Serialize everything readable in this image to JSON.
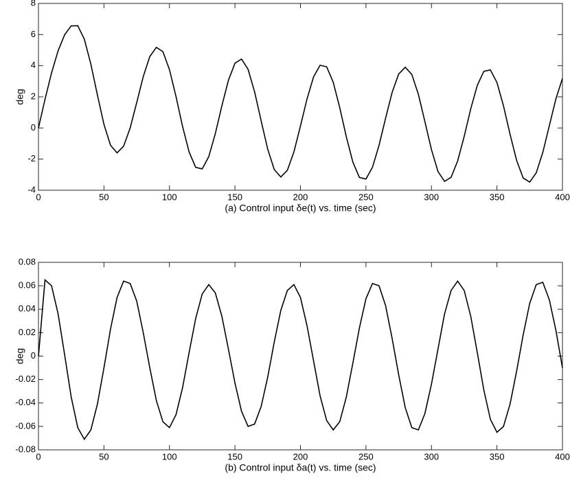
{
  "chart_data": [
    {
      "type": "line",
      "xlabel": "(a) Control input δe(t) vs. time (sec)",
      "ylabel": "deg",
      "xlim": [
        0,
        400
      ],
      "ylim": [
        -4,
        8
      ],
      "xticks": [
        0,
        50,
        100,
        150,
        200,
        250,
        300,
        350,
        400
      ],
      "yticks": [
        -4,
        -2,
        0,
        2,
        4,
        6,
        8
      ],
      "color": "#000000",
      "x": [
        0,
        5,
        10,
        15,
        20,
        25,
        30,
        35,
        40,
        45,
        50,
        55,
        60,
        65,
        70,
        75,
        80,
        85,
        90,
        95,
        100,
        105,
        110,
        115,
        120,
        125,
        130,
        135,
        140,
        145,
        150,
        155,
        160,
        165,
        170,
        175,
        180,
        185,
        190,
        195,
        200,
        205,
        210,
        215,
        220,
        225,
        230,
        235,
        240,
        245,
        250,
        255,
        260,
        265,
        270,
        275,
        280,
        285,
        290,
        295,
        300,
        305,
        310,
        315,
        320,
        325,
        330,
        335,
        340,
        345,
        350,
        355,
        360,
        365,
        370,
        375,
        380,
        385,
        390,
        395,
        400
      ],
      "values": [
        0,
        1.84,
        3.54,
        4.96,
        5.99,
        6.56,
        6.57,
        5.71,
        4.1,
        2.12,
        0.23,
        -1.11,
        -1.6,
        -1.17,
        0.0,
        1.63,
        3.3,
        4.59,
        5.18,
        4.9,
        3.75,
        2.02,
        0.1,
        -1.54,
        -2.53,
        -2.63,
        -1.84,
        -0.37,
        1.42,
        3.06,
        4.16,
        4.43,
        3.77,
        2.32,
        0.46,
        -1.36,
        -2.67,
        -3.15,
        -2.72,
        -1.54,
        0.12,
        1.86,
        3.28,
        4.03,
        3.93,
        2.94,
        1.31,
        -0.56,
        -2.19,
        -3.18,
        -3.28,
        -2.52,
        -1.11,
        0.63,
        2.29,
        3.47,
        3.9,
        3.44,
        2.17,
        0.41,
        -1.39,
        -2.8,
        -3.43,
        -3.17,
        -2.12,
        -0.54,
        1.23,
        2.74,
        3.64,
        3.73,
        2.92,
        1.42,
        -0.4,
        -2.08,
        -3.21,
        -3.48,
        -2.88,
        -1.57,
        0.15,
        1.87,
        3.18
      ]
    },
    {
      "type": "line",
      "xlabel": "(b) Control input δa(t) vs. time (sec)",
      "ylabel": "deg",
      "xlim": [
        0,
        400
      ],
      "ylim": [
        -0.08,
        0.08
      ],
      "xticks": [
        0,
        50,
        100,
        150,
        200,
        250,
        300,
        350,
        400
      ],
      "yticks": [
        -0.08,
        -0.06,
        -0.04,
        -0.02,
        0,
        0.02,
        0.04,
        0.06,
        0.08
      ],
      "color": "#000000",
      "x": [
        0,
        5,
        10,
        15,
        20,
        25,
        30,
        35,
        40,
        45,
        50,
        55,
        60,
        65,
        70,
        75,
        80,
        85,
        90,
        95,
        100,
        105,
        110,
        115,
        120,
        125,
        130,
        135,
        140,
        145,
        150,
        155,
        160,
        165,
        170,
        175,
        180,
        185,
        190,
        195,
        200,
        205,
        210,
        215,
        220,
        225,
        230,
        235,
        240,
        245,
        250,
        255,
        260,
        265,
        270,
        275,
        280,
        285,
        290,
        295,
        300,
        305,
        310,
        315,
        320,
        325,
        330,
        335,
        340,
        345,
        350,
        355,
        360,
        365,
        370,
        375,
        380,
        385,
        390,
        395,
        400
      ],
      "values": [
        0,
        0.065,
        0.06,
        0.036,
        0.001,
        -0.035,
        -0.061,
        -0.071,
        -0.063,
        -0.041,
        -0.01,
        0.023,
        0.05,
        0.064,
        0.062,
        0.047,
        0.02,
        -0.01,
        -0.038,
        -0.056,
        -0.061,
        -0.05,
        -0.027,
        0.003,
        0.032,
        0.053,
        0.061,
        0.054,
        0.034,
        0.006,
        -0.023,
        -0.047,
        -0.06,
        -0.058,
        -0.043,
        -0.018,
        0.012,
        0.039,
        0.056,
        0.061,
        0.05,
        0.026,
        -0.004,
        -0.034,
        -0.055,
        -0.063,
        -0.056,
        -0.035,
        -0.006,
        0.024,
        0.049,
        0.062,
        0.06,
        0.043,
        0.015,
        -0.016,
        -0.044,
        -0.061,
        -0.063,
        -0.049,
        -0.024,
        0.006,
        0.036,
        0.056,
        0.064,
        0.056,
        0.034,
        0.003,
        -0.029,
        -0.054,
        -0.065,
        -0.06,
        -0.041,
        -0.013,
        0.018,
        0.045,
        0.061,
        0.063,
        0.048,
        0.022,
        -0.01
      ]
    }
  ]
}
